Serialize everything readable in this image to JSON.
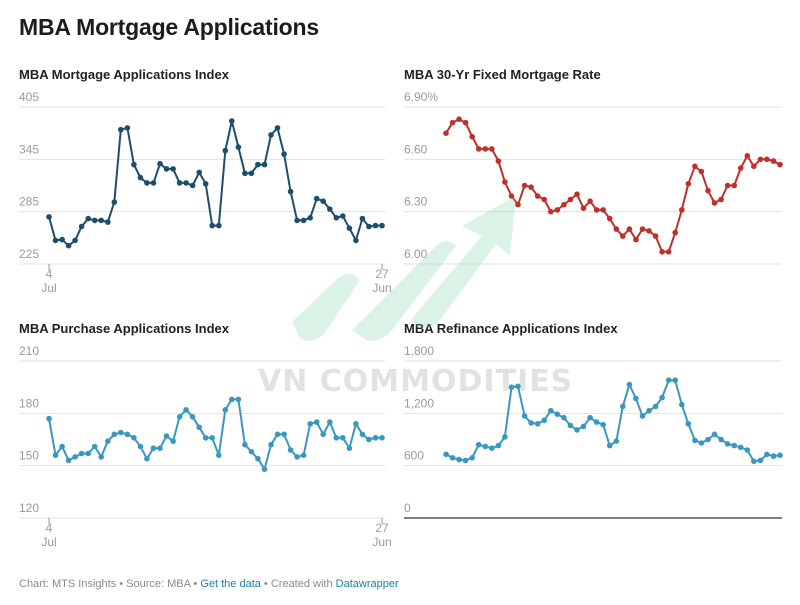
{
  "page": {
    "title": "MBA Mortgage Applications"
  },
  "footer": {
    "prefix": "Chart: MTS Insights • Source: MBA • ",
    "get_data_link": "Get the data",
    "middle": " • Created with ",
    "datawrapper_link": "Datawrapper"
  },
  "watermark": {
    "text": "VN COMMODITIES"
  },
  "colors": {
    "mortgage_index": "#1e4e6c",
    "fixed_rate": "#c0302b",
    "purchase_index": "#3a98bf",
    "refinance_index": "#3a98bf",
    "gridline": "#e2e2e2",
    "baseline": "#333333",
    "watermark_arrow": "#7fd3a8"
  },
  "chart_data": [
    {
      "type": "line",
      "title": "MBA Mortgage Applications Index",
      "color": "#1e4e6c",
      "x_tick_labels": [
        {
          "index": 0,
          "line1": "4",
          "line2": "Jul"
        },
        {
          "index": 51,
          "line1": "27",
          "line2": "Jun"
        }
      ],
      "y_ticks": [
        "405",
        "345",
        "285",
        "225"
      ],
      "y_tick_values": [
        405,
        345,
        285,
        225
      ],
      "ylim": [
        225,
        405
      ],
      "baseline": false,
      "values": [
        279,
        252,
        253,
        246,
        252,
        268,
        277,
        275,
        275,
        273,
        296,
        379,
        381,
        339,
        324,
        318,
        318,
        340,
        334,
        334,
        318,
        318,
        315,
        330,
        317,
        269,
        269,
        355,
        389,
        359,
        329,
        329,
        339,
        339,
        373,
        381,
        351,
        308,
        275,
        275,
        278,
        300,
        297,
        288,
        278,
        280,
        266,
        252,
        277,
        268,
        269,
        269
      ]
    },
    {
      "type": "line",
      "title": "MBA 30-Yr Fixed Mortgage Rate",
      "color": "#c0302b",
      "x_tick_labels": [],
      "y_ticks": [
        "6.90%",
        "6.60",
        "6.30",
        "6.00"
      ],
      "y_tick_values": [
        6.9,
        6.6,
        6.3,
        6.0
      ],
      "ylim": [
        6.0,
        6.9
      ],
      "baseline": false,
      "values": [
        6.75,
        6.81,
        6.83,
        6.81,
        6.73,
        6.66,
        6.66,
        6.66,
        6.59,
        6.47,
        6.39,
        6.34,
        6.45,
        6.44,
        6.39,
        6.37,
        6.3,
        6.31,
        6.34,
        6.37,
        6.4,
        6.32,
        6.36,
        6.31,
        6.31,
        6.26,
        6.2,
        6.16,
        6.2,
        6.14,
        6.2,
        6.19,
        6.16,
        6.07,
        6.07,
        6.18,
        6.31,
        6.46,
        6.56,
        6.53,
        6.42,
        6.35,
        6.37,
        6.45,
        6.45,
        6.55,
        6.62,
        6.56,
        6.6,
        6.6,
        6.59,
        6.57
      ]
    },
    {
      "type": "line",
      "title": "MBA Purchase Applications Index",
      "color": "#3a98bf",
      "x_tick_labels": [
        {
          "index": 0,
          "line1": "4",
          "line2": "Jul"
        },
        {
          "index": 51,
          "line1": "27",
          "line2": "Jun"
        }
      ],
      "y_ticks": [
        "210",
        "180",
        "150",
        "120"
      ],
      "y_tick_values": [
        210,
        180,
        150,
        120
      ],
      "ylim": [
        120,
        210
      ],
      "baseline": false,
      "values": [
        177,
        156,
        161,
        153,
        155,
        157,
        157,
        161,
        155,
        164,
        168,
        169,
        168,
        166,
        161,
        154,
        160,
        160,
        167,
        164,
        178,
        182,
        178,
        172,
        166,
        166,
        156,
        182,
        188,
        188,
        162,
        158,
        154,
        148,
        162,
        168,
        168,
        159,
        155,
        156,
        174,
        175,
        168,
        175,
        166,
        166,
        160,
        174,
        168,
        165,
        166,
        166
      ]
    },
    {
      "type": "line",
      "title": "MBA Refinance Applications Index",
      "color": "#3a98bf",
      "x_tick_labels": [],
      "y_ticks": [
        "1,800",
        "1,200",
        "600",
        "0"
      ],
      "y_tick_values": [
        1800,
        1200,
        600,
        0
      ],
      "ylim": [
        0,
        1800
      ],
      "baseline": true,
      "values": [
        730,
        690,
        670,
        660,
        690,
        840,
        820,
        800,
        830,
        930,
        1500,
        1510,
        1170,
        1090,
        1080,
        1120,
        1230,
        1190,
        1150,
        1060,
        1010,
        1050,
        1150,
        1100,
        1070,
        830,
        880,
        1280,
        1530,
        1370,
        1170,
        1230,
        1280,
        1380,
        1580,
        1580,
        1300,
        1080,
        890,
        860,
        900,
        960,
        900,
        850,
        830,
        810,
        780,
        650,
        660,
        730,
        710,
        720
      ]
    }
  ]
}
